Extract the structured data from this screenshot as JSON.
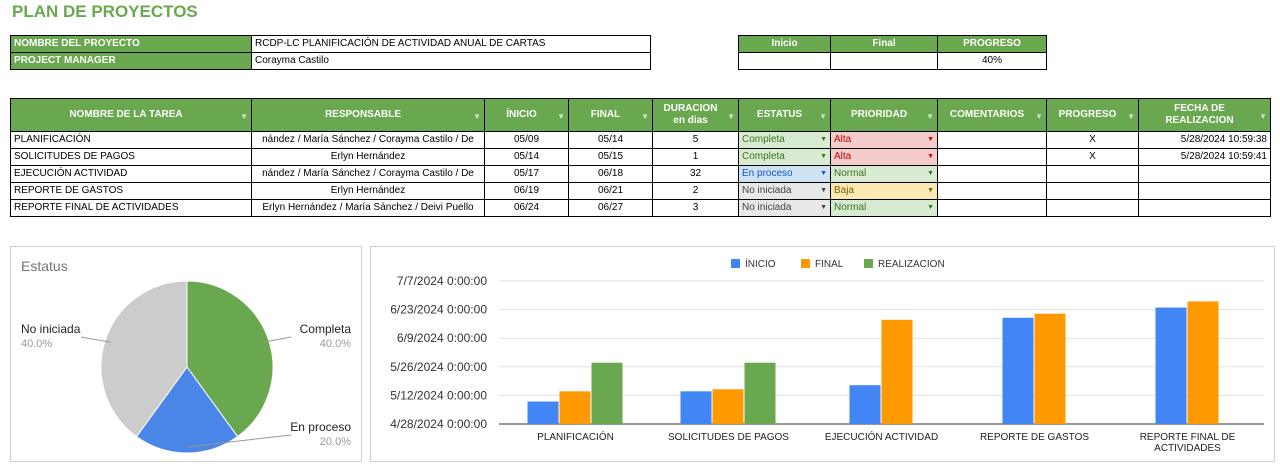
{
  "page_title": "PLAN DE PROYECTOS",
  "project_info": {
    "name_label": "NOMBRE DEL PROYECTO",
    "name_value": "RCDP-LC PLANIFICACIÓN DE ACTIVIDAD ANUAL DE CARTAS",
    "pm_label": "PROJECT  MANAGER",
    "pm_value": "Corayma Castilo"
  },
  "summary": {
    "headers": [
      "Inicio",
      "Final",
      "PROGRESO"
    ],
    "values": [
      "",
      "",
      "40%"
    ]
  },
  "task_table": {
    "headers": [
      "NOMBRE DE LA TAREA",
      "RESPONSABLE",
      "ÍNICIO",
      "FINAL",
      "DURACION en dias",
      "ESTATUS",
      "PRIORIDAD",
      "COMENTARIOS",
      "PROGRESO",
      "FECHA DE REALIZACION"
    ],
    "rows": [
      {
        "task": "PLANIFICACIÓN",
        "resp": "nández / María Sánchez / Corayma Castilo / De",
        "start": "05/09",
        "end": "05/14",
        "dur": "5",
        "status": "Completa",
        "priority": "Alta",
        "comment": "",
        "progress": "X",
        "done": "5/28/2024 10:59:38"
      },
      {
        "task": "SOLICITUDES DE PAGOS",
        "resp": "Erlyn Hernández",
        "start": "05/14",
        "end": "05/15",
        "dur": "1",
        "status": "Completa",
        "priority": "Alta",
        "comment": "",
        "progress": "X",
        "done": "5/28/2024 10:59:41"
      },
      {
        "task": "EJECUCIÓN ACTIVIDAD",
        "resp": "nández / María Sánchez / Corayma Castilo / De",
        "start": "05/17",
        "end": "06/18",
        "dur": "32",
        "status": "En proceso",
        "priority": "Normal",
        "comment": "",
        "progress": "",
        "done": ""
      },
      {
        "task": "REPORTE DE GASTOS",
        "resp": "Erlyn Hernández",
        "start": "06/19",
        "end": "06/21",
        "dur": "2",
        "status": "No iniciada",
        "priority": "Baja",
        "comment": "",
        "progress": "",
        "done": ""
      },
      {
        "task": "REPORTE FINAL DE ACTIVIDADES",
        "resp": "Erlyn Hernández / María Sánchez / Deivi Puello",
        "start": "06/24",
        "end": "06/27",
        "dur": "3",
        "status": "No iniciada",
        "priority": "Normal",
        "comment": "",
        "progress": "",
        "done": ""
      }
    ]
  },
  "colors": {
    "accent_green": "#6aa84f",
    "blue": "#4285f4",
    "orange": "#ff9900",
    "green": "#6aa84f",
    "grey": "#cccccc"
  },
  "chart_data": [
    {
      "type": "pie",
      "title": "Estatus",
      "slices": [
        {
          "label": "Completa",
          "value": 40.0,
          "pct_text": "40.0%",
          "color": "#6aa84f"
        },
        {
          "label": "En proceso",
          "value": 20.0,
          "pct_text": "20.0%",
          "color": "#4a86e8"
        },
        {
          "label": "No iniciada",
          "value": 40.0,
          "pct_text": "40.0%",
          "color": "#cccccc"
        }
      ]
    },
    {
      "type": "bar",
      "title": "",
      "legend_position": "top",
      "categories": [
        "PLANIFICACIÓN",
        "SOLICITUDES DE PAGOS",
        "EJECUCIÓN ACTIVIDAD",
        "REPORTE DE GASTOS",
        "REPORTE FINAL DE ACTIVIDADES"
      ],
      "y_ticks": [
        "7/7/2024 0:00:00",
        "6/23/2024 0:00:00",
        "6/9/2024 0:00:00",
        "5/26/2024 0:00:00",
        "5/12/2024 0:00:00",
        "4/28/2024 0:00:00"
      ],
      "ylim": [
        "2024-04-28",
        "2024-07-07"
      ],
      "series": [
        {
          "name": "ÍNICIO",
          "color": "#4285f4",
          "values": [
            "2024-05-09",
            "2024-05-14",
            "2024-05-17",
            "2024-06-19",
            "2024-06-24"
          ]
        },
        {
          "name": "FINAL",
          "color": "#ff9900",
          "values": [
            "2024-05-14",
            "2024-05-15",
            "2024-06-18",
            "2024-06-21",
            "2024-06-27"
          ]
        },
        {
          "name": "REALIZACION",
          "color": "#6aa84f",
          "values": [
            "2024-05-28",
            "2024-05-28",
            null,
            null,
            null
          ]
        }
      ]
    }
  ]
}
